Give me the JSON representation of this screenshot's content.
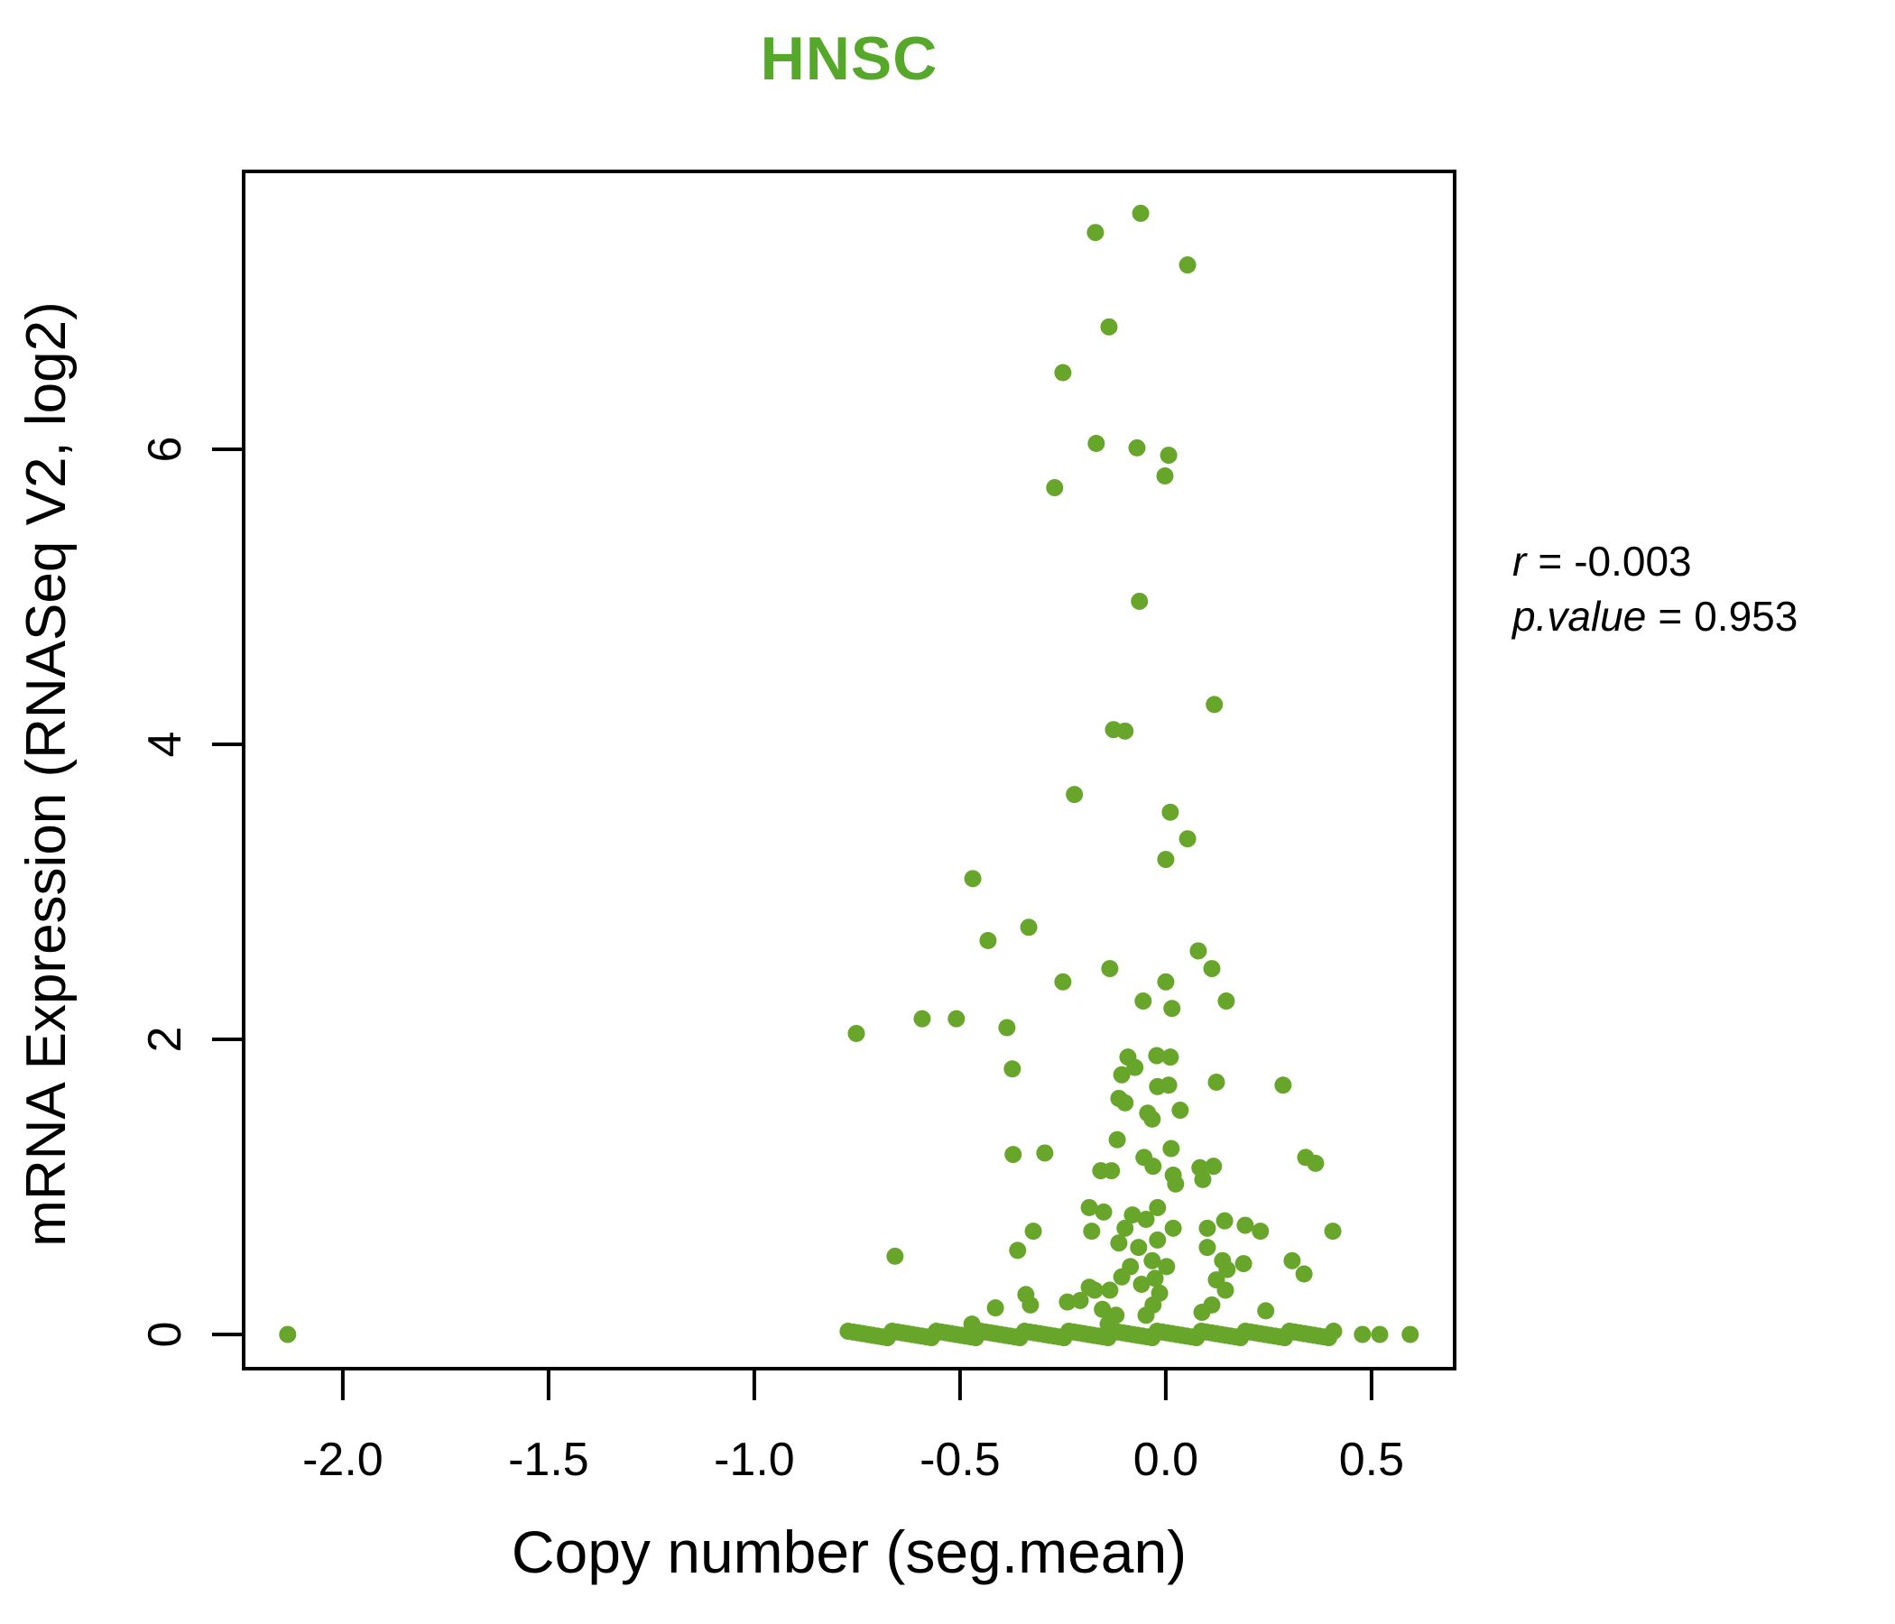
{
  "title": {
    "text": "HNSC",
    "color": "#56a82a"
  },
  "x_axis": {
    "label": "Copy number (seg.mean)",
    "tick_labels": [
      "-2.0",
      "-1.5",
      "-1.0",
      "-0.5",
      "0.0",
      "0.5"
    ]
  },
  "y_axis": {
    "label": "mRNA Expression (RNASeq V2, log2)",
    "tick_labels": [
      "0",
      "2",
      "4",
      "6"
    ]
  },
  "stats": {
    "r_label": "r",
    "r_eq": "=",
    "r_value": "-0.003",
    "p_label": "p.value",
    "p_eq": "=",
    "p_value": "0.953"
  },
  "chart_data": {
    "type": "scatter",
    "title": "HNSC",
    "xlabel": "Copy number (seg.mean)",
    "ylabel": "mRNA Expression (RNASeq V2, log2)",
    "xlim": [
      -2.241,
      0.702
    ],
    "ylim": [
      -0.232,
      7.884
    ],
    "x_ticks": [
      -2.0,
      -1.5,
      -1.0,
      -0.5,
      0.0,
      0.5
    ],
    "y_ticks": [
      0,
      2,
      4,
      6
    ],
    "grid": false,
    "legend": "none",
    "correlation_r": -0.003,
    "p_value": 0.953,
    "point_color": "#68a62b",
    "point_radius": 9.5,
    "axis_color": "#000000",
    "points": [
      [
        -0.061,
        7.6
      ],
      [
        -0.171,
        7.47
      ],
      [
        0.053,
        7.25
      ],
      [
        -0.138,
        6.83
      ],
      [
        -0.25,
        6.52
      ],
      [
        -0.169,
        6.04
      ],
      [
        -0.07,
        6.01
      ],
      [
        0.007,
        5.96
      ],
      [
        -0.002,
        5.82
      ],
      [
        -0.27,
        5.74
      ],
      [
        -0.064,
        4.97
      ],
      [
        0.118,
        4.27
      ],
      [
        -0.127,
        4.1
      ],
      [
        -0.099,
        4.09
      ],
      [
        -0.222,
        3.66
      ],
      [
        0.011,
        3.54
      ],
      [
        0.053,
        3.36
      ],
      [
        0.0,
        3.22
      ],
      [
        -0.469,
        3.09
      ],
      [
        -0.333,
        2.76
      ],
      [
        -0.432,
        2.67
      ],
      [
        0.079,
        2.6
      ],
      [
        -0.136,
        2.48
      ],
      [
        0.112,
        2.48
      ],
      [
        -0.25,
        2.39
      ],
      [
        0.0,
        2.39
      ],
      [
        -0.055,
        2.26
      ],
      [
        0.147,
        2.26
      ],
      [
        0.015,
        2.21
      ],
      [
        -0.592,
        2.14
      ],
      [
        -0.509,
        2.14
      ],
      [
        -0.752,
        2.04
      ],
      [
        -0.386,
        2.08
      ],
      [
        -0.092,
        1.88
      ],
      [
        -0.022,
        1.89
      ],
      [
        0.011,
        1.88
      ],
      [
        -0.075,
        1.81
      ],
      [
        -0.107,
        1.76
      ],
      [
        -0.373,
        1.8
      ],
      [
        -0.02,
        1.68
      ],
      [
        0.007,
        1.69
      ],
      [
        0.123,
        1.71
      ],
      [
        0.285,
        1.69
      ],
      [
        -0.114,
        1.6
      ],
      [
        -0.099,
        1.57
      ],
      [
        -0.044,
        1.5
      ],
      [
        -0.033,
        1.46
      ],
      [
        0.035,
        1.52
      ],
      [
        -0.118,
        1.32
      ],
      [
        -0.371,
        1.22
      ],
      [
        -0.294,
        1.23
      ],
      [
        -0.053,
        1.2
      ],
      [
        -0.031,
        1.14
      ],
      [
        0.013,
        1.26
      ],
      [
        0.34,
        1.2
      ],
      [
        0.364,
        1.16
      ],
      [
        0.083,
        1.13
      ],
      [
        0.116,
        1.14
      ],
      [
        -0.158,
        1.11
      ],
      [
        -0.132,
        1.11
      ],
      [
        0.018,
        1.08
      ],
      [
        0.024,
        1.02
      ],
      [
        0.09,
        1.05
      ],
      [
        -0.186,
        0.86
      ],
      [
        -0.151,
        0.83
      ],
      [
        -0.02,
        0.86
      ],
      [
        -0.081,
        0.81
      ],
      [
        -0.048,
        0.78
      ],
      [
        0.018,
        0.72
      ],
      [
        0.101,
        0.72
      ],
      [
        0.143,
        0.77
      ],
      [
        0.193,
        0.74
      ],
      [
        0.23,
        0.7
      ],
      [
        -0.322,
        0.7
      ],
      [
        -0.18,
        0.7
      ],
      [
        -0.099,
        0.72
      ],
      [
        0.406,
        0.7
      ],
      [
        -0.114,
        0.62
      ],
      [
        -0.066,
        0.59
      ],
      [
        -0.02,
        0.64
      ],
      [
        0.101,
        0.59
      ],
      [
        -0.36,
        0.57
      ],
      [
        -0.658,
        0.53
      ],
      [
        0.138,
        0.5
      ],
      [
        -0.033,
        0.5
      ],
      [
        0.002,
        0.46
      ],
      [
        -0.086,
        0.46
      ],
      [
        0.307,
        0.5
      ],
      [
        0.189,
        0.48
      ],
      [
        0.149,
        0.44
      ],
      [
        -0.107,
        0.39
      ],
      [
        0.336,
        0.41
      ],
      [
        -0.059,
        0.34
      ],
      [
        -0.026,
        0.38
      ],
      [
        -0.34,
        0.27
      ],
      [
        -0.329,
        0.2
      ],
      [
        -0.015,
        0.28
      ],
      [
        -0.136,
        0.3
      ],
      [
        -0.173,
        0.3
      ],
      [
        0.123,
        0.37
      ],
      [
        0.145,
        0.3
      ],
      [
        -0.031,
        0.2
      ],
      [
        -0.239,
        0.22
      ],
      [
        -0.208,
        0.23
      ],
      [
        -0.186,
        0.32
      ],
      [
        0.112,
        0.2
      ],
      [
        0.088,
        0.15
      ],
      [
        0.243,
        0.16
      ],
      [
        -0.048,
        0.13
      ],
      [
        -0.154,
        0.17
      ],
      [
        -0.121,
        0.13
      ],
      [
        -0.414,
        0.18
      ],
      [
        -0.14,
        0.07
      ],
      [
        -0.471,
        0.07
      ],
      [
        -2.134,
        0.0
      ],
      [
        0.478,
        0.0
      ],
      [
        0.52,
        0.0
      ],
      [
        0.594,
        0.0
      ]
    ],
    "baseline_band": {
      "y": 0.0,
      "x_start": -0.772,
      "x_end": 0.408,
      "count": 100
    }
  }
}
